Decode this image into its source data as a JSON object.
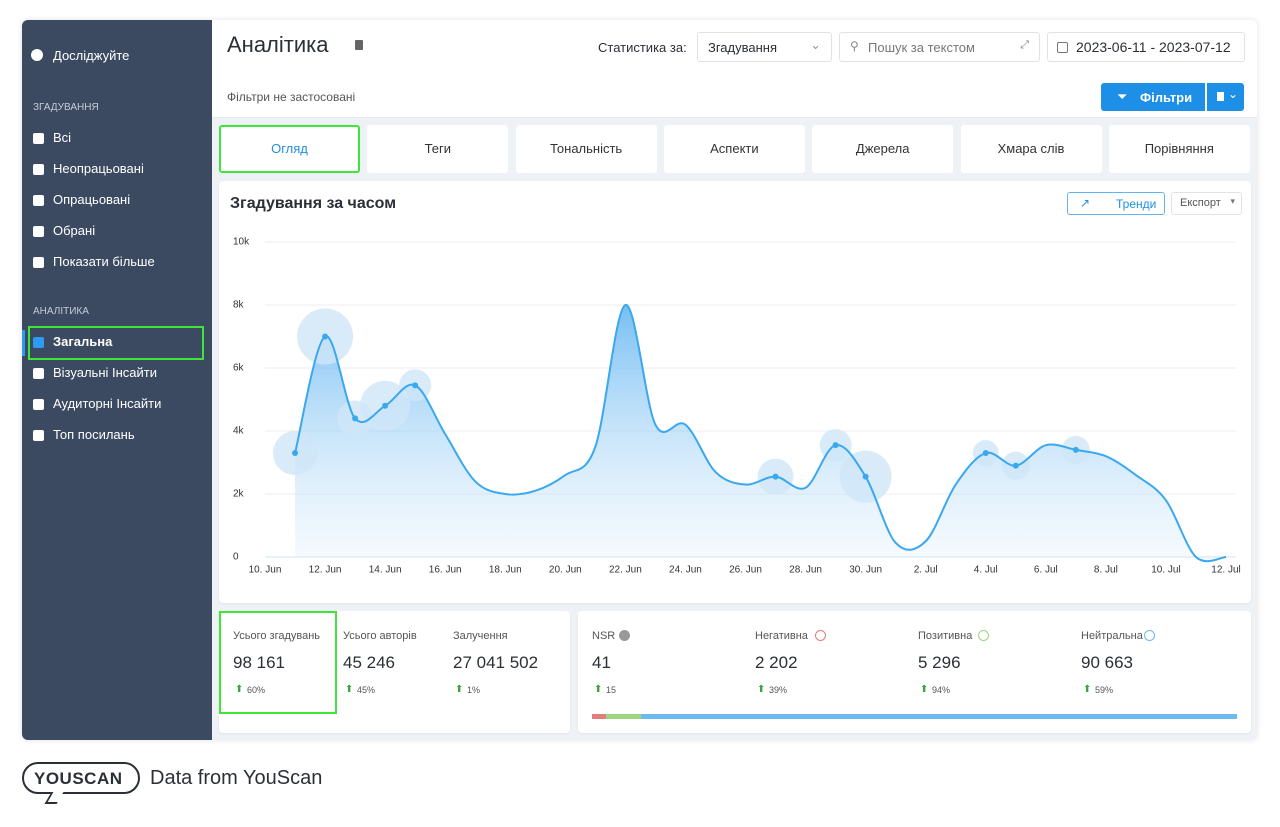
{
  "sidebar": {
    "explore": "Досліджуйте",
    "sections": [
      {
        "title": "ЗГАДУВАННЯ",
        "items": [
          "Всі",
          "Неопрацьовані",
          "Опрацьовані",
          "Обрані",
          "Показати більше"
        ]
      },
      {
        "title": "АНАЛІТИКА",
        "items": [
          "Загальна",
          "Візуальні Інсайти",
          "Аудиторні Інсайти",
          "Топ посилань"
        ]
      }
    ]
  },
  "header": {
    "title": "Аналітика",
    "stat_label": "Статистика за:",
    "stat_select": "Згадування",
    "search_placeholder": "Пошук за текстом",
    "date_range": "2023-06-11 - 2023-07-12"
  },
  "filters": {
    "status": "Фільтри не застосовані",
    "button": "Фільтри"
  },
  "tabs": [
    "Огляд",
    "Теги",
    "Тональність",
    "Аспекти",
    "Джерела",
    "Хмара слів",
    "Порівняння"
  ],
  "chart_controls": [
    "Тренди",
    "Експорт"
  ],
  "chart_data": {
    "type": "line",
    "title": "Згадування за часом",
    "categories": [
      "10. Jun",
      null,
      "12. Jun",
      null,
      "14. Jun",
      null,
      "16. Jun",
      null,
      "18. Jun",
      null,
      "20. Jun",
      null,
      "22. Jun",
      null,
      "24. Jun",
      null,
      "26. Jun",
      null,
      "28. Jun",
      null,
      "30. Jun",
      null,
      "2. Jul",
      null,
      "4. Jul",
      null,
      "6. Jul",
      null,
      "8. Jul",
      null,
      "10. Jul",
      null,
      "12. Jul"
    ],
    "values": [
      null,
      3300,
      7000,
      4400,
      4800,
      5450,
      3900,
      2400,
      2000,
      2100,
      2600,
      3500,
      8000,
      4200,
      4200,
      2700,
      2300,
      2550,
      2200,
      3550,
      2550,
      450,
      500,
      2300,
      3300,
      2900,
      3550,
      3400,
      3200,
      2600,
      1800,
      0,
      0
    ],
    "bubble_sizes": [
      null,
      22,
      28,
      18,
      25,
      16,
      null,
      null,
      null,
      null,
      null,
      null,
      null,
      null,
      null,
      null,
      null,
      18,
      null,
      16,
      26,
      null,
      null,
      null,
      13,
      14,
      null,
      14,
      null,
      null,
      null,
      null,
      null
    ],
    "color": "#3aa8ee",
    "bubble_color": "#cfe6f8",
    "ylim": [
      0,
      10000
    ],
    "yticks": [
      0,
      {
        "value": 2000,
        "label": "2k"
      },
      {
        "value": 4000,
        "label": "4k"
      },
      {
        "value": 6000,
        "label": "6k"
      },
      {
        "value": 8000,
        "label": "8k"
      },
      {
        "value": 10000,
        "label": "10k"
      }
    ],
    "grid": true
  },
  "totals": [
    {
      "label": "Усього згадувань",
      "value": "98 161",
      "change": "60%"
    },
    {
      "label": "Усього авторів",
      "value": "45 246",
      "change": "45%"
    },
    {
      "label": "Залучення",
      "value": "27 041 502",
      "change": "1%"
    }
  ],
  "sentiment": [
    {
      "label": "NSR",
      "value": 41,
      "change": "15"
    },
    {
      "label": "Негативна",
      "value": {
        "value": 2202,
        "label": "2 202"
      },
      "change": "39%",
      "color": "#e27d7b"
    },
    {
      "label": "Позитивна",
      "value": {
        "value": 5296,
        "label": "5 296"
      },
      "change": "94%",
      "color": "#9ed581"
    },
    {
      "label": "Нейтральна",
      "value": {
        "value": 90663,
        "label": "90 663"
      },
      "change": "59%",
      "color": "#6cbaf0"
    }
  ],
  "footer": {
    "logo": "YOUSCAN",
    "text": "Data from YouScan"
  }
}
